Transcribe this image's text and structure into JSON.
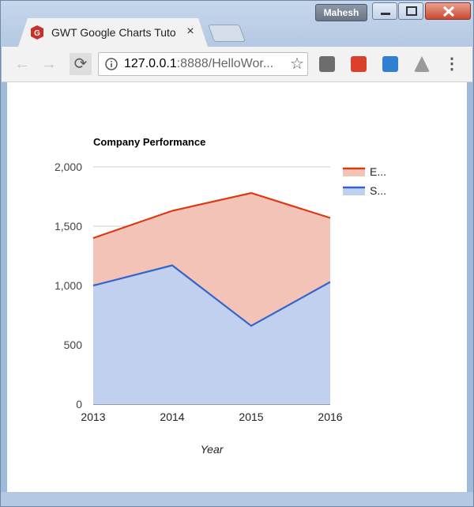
{
  "window": {
    "user": "Mahesh",
    "tab_title": "GWT Google Charts Tuto",
    "tab_close": "×"
  },
  "toolbar": {
    "url_host": "127.0.0.1",
    "url_rest": ":8888/HelloWor...",
    "menu_icon": "three-dots-icon"
  },
  "colors": {
    "expenses": "#dc3912",
    "sales": "#3366cc",
    "expenses_fill": "#f4c3b8",
    "sales_fill": "#c1d0ef"
  },
  "chart_data": {
    "type": "area",
    "title": "Company Performance",
    "xlabel": "Year",
    "ylabel": "",
    "categories": [
      "2013",
      "2014",
      "2015",
      "2016"
    ],
    "ylim": [
      0,
      2000
    ],
    "yticks": [
      "0",
      "500",
      "1,000",
      "1,500",
      "2,000"
    ],
    "stacked": true,
    "series": [
      {
        "name": "S...",
        "values": [
          1000,
          1170,
          660,
          1030
        ]
      },
      {
        "name": "E...",
        "values": [
          400,
          460,
          1120,
          540
        ]
      }
    ],
    "legend_position": "right",
    "grid": true
  }
}
